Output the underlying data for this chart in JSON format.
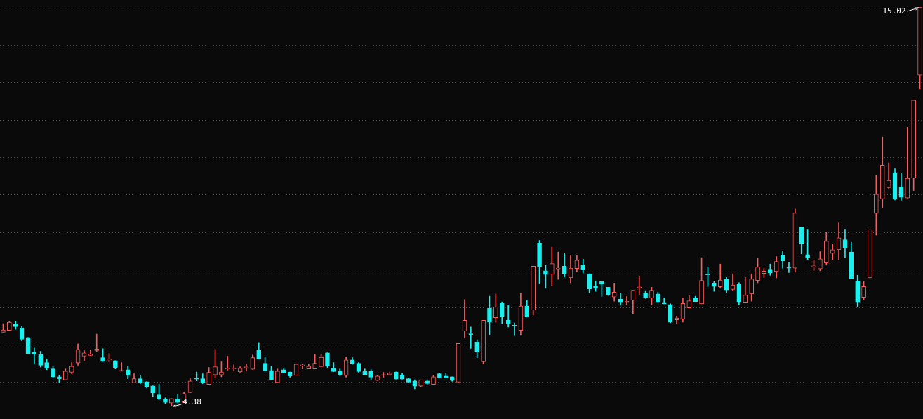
{
  "chart_data": {
    "type": "candlestick",
    "categories": [
      null,
      null,
      null,
      null,
      null,
      null,
      null,
      null,
      null,
      null,
      null,
      null,
      null,
      null,
      null,
      null,
      null,
      null,
      null,
      null,
      null,
      null,
      null,
      null,
      null,
      null,
      null,
      null,
      null,
      null,
      null,
      null,
      null,
      null,
      null,
      null,
      null,
      null,
      null,
      null,
      null,
      null,
      null,
      null,
      null,
      null,
      null,
      null,
      null,
      null,
      null,
      null,
      null,
      null,
      null,
      null,
      null,
      null,
      null,
      null,
      null,
      null,
      null,
      null,
      null,
      null,
      null,
      null,
      null,
      null,
      null,
      null,
      null,
      null,
      null,
      null,
      null,
      null,
      null,
      null,
      null,
      null,
      null,
      null,
      null,
      null,
      null,
      null,
      null,
      null,
      null,
      null,
      null,
      null,
      null,
      null,
      null,
      null,
      null,
      null,
      null,
      null,
      null,
      null,
      null,
      null,
      null,
      null,
      null,
      null,
      null,
      null,
      null,
      null,
      null,
      null,
      null,
      null,
      null,
      null,
      null,
      null,
      null,
      null,
      null,
      null,
      null,
      null,
      null,
      null,
      null,
      null,
      null,
      null,
      null,
      null,
      null,
      null,
      null,
      null,
      null,
      null,
      null,
      null,
      null,
      null,
      null,
      null
    ],
    "ohlc": [
      [
        6.34,
        6.57,
        6.34,
        6.4
      ],
      [
        6.39,
        6.63,
        6.39,
        6.61
      ],
      [
        6.56,
        6.63,
        6.42,
        6.49
      ],
      [
        6.46,
        6.5,
        6.11,
        6.15
      ],
      [
        6.2,
        6.2,
        5.77,
        5.77
      ],
      [
        5.81,
        5.92,
        5.49,
        5.76
      ],
      [
        5.75,
        5.83,
        5.41,
        5.46
      ],
      [
        5.53,
        5.62,
        5.34,
        5.38
      ],
      [
        5.36,
        5.43,
        5.12,
        5.15
      ],
      [
        5.15,
        5.19,
        4.99,
        5.1
      ],
      [
        5.07,
        5.36,
        5.07,
        5.3
      ],
      [
        5.27,
        5.53,
        5.23,
        5.43
      ],
      [
        5.52,
        6.03,
        5.46,
        5.88
      ],
      [
        5.7,
        5.85,
        5.58,
        5.79
      ],
      [
        5.72,
        5.86,
        5.72,
        5.76
      ],
      [
        5.85,
        6.29,
        5.81,
        5.89
      ],
      [
        5.66,
        5.9,
        5.56,
        5.56
      ],
      [
        5.6,
        5.77,
        5.55,
        5.6
      ],
      [
        5.58,
        5.58,
        5.36,
        5.4
      ],
      [
        5.3,
        5.53,
        5.3,
        5.3
      ],
      [
        5.34,
        5.43,
        5.1,
        5.19
      ],
      [
        4.99,
        5.23,
        4.99,
        5.1
      ],
      [
        5.1,
        5.19,
        4.97,
        4.99
      ],
      [
        5.02,
        5.02,
        4.86,
        4.89
      ],
      [
        4.91,
        4.91,
        4.63,
        4.72
      ],
      [
        4.67,
        4.95,
        4.54,
        4.56
      ],
      [
        4.56,
        4.59,
        4.43,
        4.47
      ],
      [
        4.45,
        4.57,
        4.38,
        4.57
      ],
      [
        4.56,
        4.68,
        4.45,
        4.47
      ],
      [
        4.48,
        4.74,
        4.48,
        4.7
      ],
      [
        4.73,
        5.1,
        4.73,
        5.04
      ],
      [
        5.1,
        5.28,
        5.04,
        5.09
      ],
      [
        5.1,
        5.23,
        4.97,
        4.99
      ],
      [
        4.95,
        5.4,
        4.95,
        5.27
      ],
      [
        5.2,
        5.88,
        5.12,
        5.42
      ],
      [
        5.2,
        5.55,
        5.15,
        5.28
      ],
      [
        5.36,
        5.7,
        5.33,
        5.37
      ],
      [
        5.36,
        5.47,
        5.3,
        5.37
      ],
      [
        5.28,
        5.42,
        5.27,
        5.38
      ],
      [
        5.4,
        5.49,
        5.3,
        5.4
      ],
      [
        5.35,
        5.73,
        5.35,
        5.66
      ],
      [
        5.86,
        6.05,
        5.62,
        5.62
      ],
      [
        5.51,
        5.68,
        5.3,
        5.32
      ],
      [
        5.32,
        5.43,
        5.08,
        5.08
      ],
      [
        5.0,
        5.36,
        4.99,
        5.3
      ],
      [
        5.34,
        5.38,
        5.25,
        5.25
      ],
      [
        5.28,
        5.28,
        5.14,
        5.17
      ],
      [
        5.19,
        5.49,
        5.19,
        5.49
      ],
      [
        5.45,
        5.49,
        5.36,
        5.46
      ],
      [
        5.36,
        5.49,
        5.36,
        5.43
      ],
      [
        5.36,
        5.75,
        5.36,
        5.51
      ],
      [
        5.42,
        5.75,
        5.42,
        5.67
      ],
      [
        5.79,
        5.79,
        5.4,
        5.43
      ],
      [
        5.38,
        5.53,
        5.29,
        5.29
      ],
      [
        5.3,
        5.36,
        5.18,
        5.2
      ],
      [
        5.18,
        5.68,
        5.14,
        5.6
      ],
      [
        5.6,
        5.66,
        5.48,
        5.51
      ],
      [
        5.51,
        5.53,
        5.27,
        5.29
      ],
      [
        5.3,
        5.36,
        5.2,
        5.2
      ],
      [
        5.3,
        5.34,
        5.07,
        5.14
      ],
      [
        5.05,
        5.19,
        5.05,
        5.17
      ],
      [
        5.19,
        5.27,
        5.14,
        5.2
      ],
      [
        5.2,
        5.28,
        5.2,
        5.25
      ],
      [
        5.28,
        5.28,
        5.09,
        5.09
      ],
      [
        5.2,
        5.25,
        5.09,
        5.09
      ],
      [
        5.1,
        5.12,
        4.99,
        5.01
      ],
      [
        5.04,
        5.07,
        4.83,
        4.9
      ],
      [
        4.9,
        5.07,
        4.88,
        5.07
      ],
      [
        5.04,
        5.07,
        4.95,
        4.97
      ],
      [
        4.95,
        5.19,
        4.95,
        5.15
      ],
      [
        5.23,
        5.25,
        5.12,
        5.12
      ],
      [
        5.17,
        5.25,
        5.12,
        5.12
      ],
      [
        5.15,
        5.15,
        5.03,
        5.05
      ],
      [
        5.01,
        6.04,
        5.01,
        6.04
      ],
      [
        6.37,
        7.21,
        6.19,
        6.66
      ],
      [
        6.29,
        6.48,
        5.91,
        6.28
      ],
      [
        6.07,
        6.14,
        5.66,
        5.83
      ],
      [
        5.55,
        6.66,
        5.5,
        6.66
      ],
      [
        6.98,
        7.3,
        6.27,
        6.61
      ],
      [
        6.73,
        7.36,
        6.61,
        7.02
      ],
      [
        7.11,
        7.15,
        6.57,
        6.76
      ],
      [
        6.66,
        7.07,
        6.48,
        6.56
      ],
      [
        6.52,
        6.59,
        6.25,
        6.51
      ],
      [
        6.39,
        7.37,
        6.28,
        7.04
      ],
      [
        7.04,
        7.19,
        6.74,
        6.76
      ],
      [
        6.93,
        8.1,
        6.8,
        8.1
      ],
      [
        8.72,
        8.79,
        7.64,
        8.09
      ],
      [
        7.98,
        8.12,
        7.51,
        7.88
      ],
      [
        7.89,
        8.61,
        7.59,
        8.17
      ],
      [
        8.03,
        8.48,
        7.75,
        8.04
      ],
      [
        8.1,
        8.44,
        7.81,
        7.9
      ],
      [
        7.79,
        8.4,
        7.66,
        8.05
      ],
      [
        8.04,
        8.4,
        7.95,
        8.26
      ],
      [
        8.12,
        8.29,
        7.92,
        8.01
      ],
      [
        7.9,
        7.9,
        7.39,
        7.49
      ],
      [
        7.56,
        7.71,
        7.43,
        7.51
      ],
      [
        7.69,
        7.69,
        7.3,
        7.62
      ],
      [
        7.54,
        7.54,
        7.32,
        7.34
      ],
      [
        7.28,
        7.65,
        7.17,
        7.41
      ],
      [
        7.22,
        7.37,
        7.06,
        7.13
      ],
      [
        7.13,
        7.29,
        7.08,
        7.17
      ],
      [
        7.19,
        7.46,
        6.84,
        7.46
      ],
      [
        7.51,
        7.84,
        7.34,
        7.55
      ],
      [
        7.39,
        7.45,
        7.24,
        7.27
      ],
      [
        7.25,
        7.54,
        7.08,
        7.46
      ],
      [
        7.36,
        7.41,
        7.12,
        7.14
      ],
      [
        7.11,
        7.26,
        7.1,
        7.1
      ],
      [
        7.08,
        7.1,
        6.59,
        6.61
      ],
      [
        6.67,
        6.77,
        6.58,
        6.72
      ],
      [
        6.69,
        7.26,
        6.61,
        7.11
      ],
      [
        6.99,
        7.32,
        6.99,
        7.18
      ],
      [
        7.26,
        7.3,
        7.15,
        7.16
      ],
      [
        7.1,
        8.33,
        7.1,
        7.72
      ],
      [
        7.88,
        8.08,
        7.56,
        7.87
      ],
      [
        7.65,
        7.69,
        7.43,
        7.56
      ],
      [
        7.55,
        8.16,
        7.53,
        7.73
      ],
      [
        7.76,
        7.82,
        7.4,
        7.47
      ],
      [
        7.48,
        7.9,
        7.45,
        7.6
      ],
      [
        7.62,
        7.66,
        7.08,
        7.14
      ],
      [
        7.12,
        7.8,
        7.12,
        7.33
      ],
      [
        7.36,
        7.9,
        7.17,
        7.76
      ],
      [
        7.72,
        8.31,
        7.66,
        8.08
      ],
      [
        7.91,
        8.04,
        7.8,
        7.97
      ],
      [
        8.02,
        8.16,
        7.86,
        7.92
      ],
      [
        7.96,
        8.36,
        7.79,
        8.23
      ],
      [
        8.4,
        8.51,
        8.05,
        8.24
      ],
      [
        8.06,
        8.21,
        7.93,
        8.05
      ],
      [
        8.05,
        9.63,
        7.94,
        9.52
      ],
      [
        9.13,
        9.13,
        8.43,
        8.71
      ],
      [
        8.41,
        9.09,
        8.28,
        8.32
      ],
      [
        8.09,
        8.27,
        7.99,
        8.09
      ],
      [
        8.03,
        8.49,
        7.98,
        8.3
      ],
      [
        8.19,
        9.0,
        8.13,
        8.77
      ],
      [
        8.44,
        8.7,
        8.28,
        8.54
      ],
      [
        8.54,
        9.26,
        8.28,
        8.86
      ],
      [
        8.81,
        9.09,
        8.33,
        8.59
      ],
      [
        8.48,
        8.74,
        7.77,
        7.77
      ],
      [
        7.71,
        7.86,
        7.01,
        7.13
      ],
      [
        7.27,
        7.69,
        7.21,
        7.56
      ],
      [
        7.79,
        9.08,
        7.79,
        9.08
      ],
      [
        9.51,
        10.53,
        8.93,
        10.02
      ],
      [
        9.9,
        11.55,
        9.67,
        10.8
      ],
      [
        10.2,
        10.86,
        10.18,
        10.39
      ],
      [
        10.6,
        10.7,
        9.87,
        9.89
      ],
      [
        10.22,
        10.58,
        9.86,
        9.94
      ],
      [
        9.92,
        11.81,
        9.92,
        10.45
      ],
      [
        10.45,
        12.53,
        10.12,
        12.53
      ],
      [
        13.2,
        15.02,
        12.83,
        15.02
      ]
    ],
    "yticks": [
      {
        "value": 5,
        "label": null
      },
      {
        "value": 6,
        "label": null
      },
      {
        "value": 7,
        "label": null
      },
      {
        "value": 8,
        "label": null
      },
      {
        "value": 9,
        "label": null
      },
      {
        "value": 10,
        "label": null
      },
      {
        "value": 11,
        "label": null
      },
      {
        "value": 12,
        "label": null
      },
      {
        "value": 13,
        "label": null
      },
      {
        "value": 14,
        "label": null
      },
      {
        "value": 15,
        "label": null
      }
    ],
    "grid": "y",
    "tick_labels": false,
    "legend": false,
    "annotations": [
      "15.02",
      "4.38"
    ]
  }
}
